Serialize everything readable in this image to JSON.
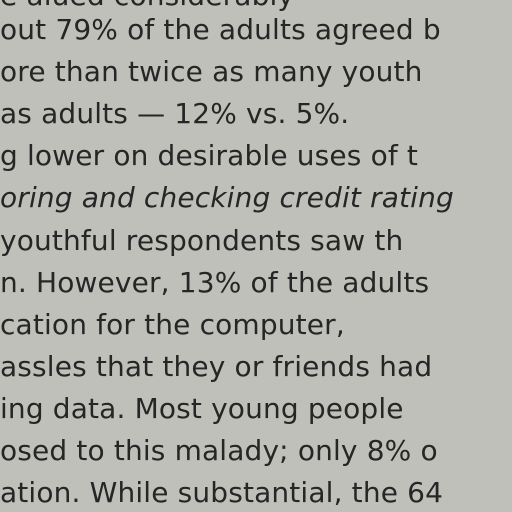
{
  "document": {
    "lines": [
      "e                 alued considerably",
      "out 79% of the adults agreed b",
      "ore than twice as many youth",
      "as adults — 12% vs. 5%.",
      "g lower on desirable uses of t",
      "oring and checking credit rating",
      "youthful respondents saw th",
      "n. However, 13% of the adults",
      "cation   for   the   computer,",
      "assles that they or friends had",
      "ing  data.  Most  young  people",
      "osed to this malady; only 8% o",
      "ation. While substantial, the 64"
    ]
  }
}
